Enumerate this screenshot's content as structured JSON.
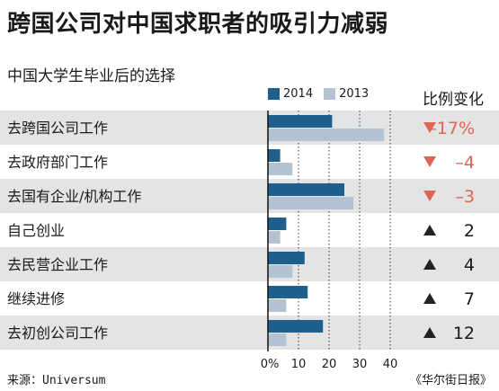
{
  "title": "跨国公司对中国求职者的吸引力减弱",
  "subtitle": "中国大学生毕业后的选择",
  "change_header": "比例变化",
  "source_label": "来源：",
  "source_name": "Universum",
  "credit": "《华尔街日报》",
  "colors": {
    "series_2014": "#1f5f8b",
    "series_2013": "#b3c3d1",
    "row_shade": "#e4e4e4",
    "down": "#e06456",
    "up": "#222222"
  },
  "chart_data": {
    "type": "bar",
    "orientation": "horizontal",
    "categories": [
      "去跨国公司工作",
      "去政府部门工作",
      "去国有企业/机构工作",
      "自己创业",
      "去民营企业工作",
      "继续进修",
      "去初创公司工作"
    ],
    "series": [
      {
        "name": "2014",
        "values": [
          21,
          4,
          25,
          6,
          12,
          13,
          18
        ]
      },
      {
        "name": "2013",
        "values": [
          38,
          8,
          28,
          4,
          8,
          6,
          6
        ]
      }
    ],
    "changes": [
      {
        "direction": "down",
        "text": "–17%"
      },
      {
        "direction": "down",
        "text": "–4"
      },
      {
        "direction": "down",
        "text": "–3"
      },
      {
        "direction": "up",
        "text": "2"
      },
      {
        "direction": "up",
        "text": "4"
      },
      {
        "direction": "up",
        "text": "7"
      },
      {
        "direction": "up",
        "text": "12"
      }
    ],
    "x_ticks": [
      "0%",
      "10",
      "20",
      "30",
      "40"
    ],
    "x_tick_values": [
      0,
      10,
      20,
      30,
      40
    ],
    "xlim": [
      0,
      40
    ],
    "gridlines": "dotted vertical",
    "legend_position": "top"
  }
}
